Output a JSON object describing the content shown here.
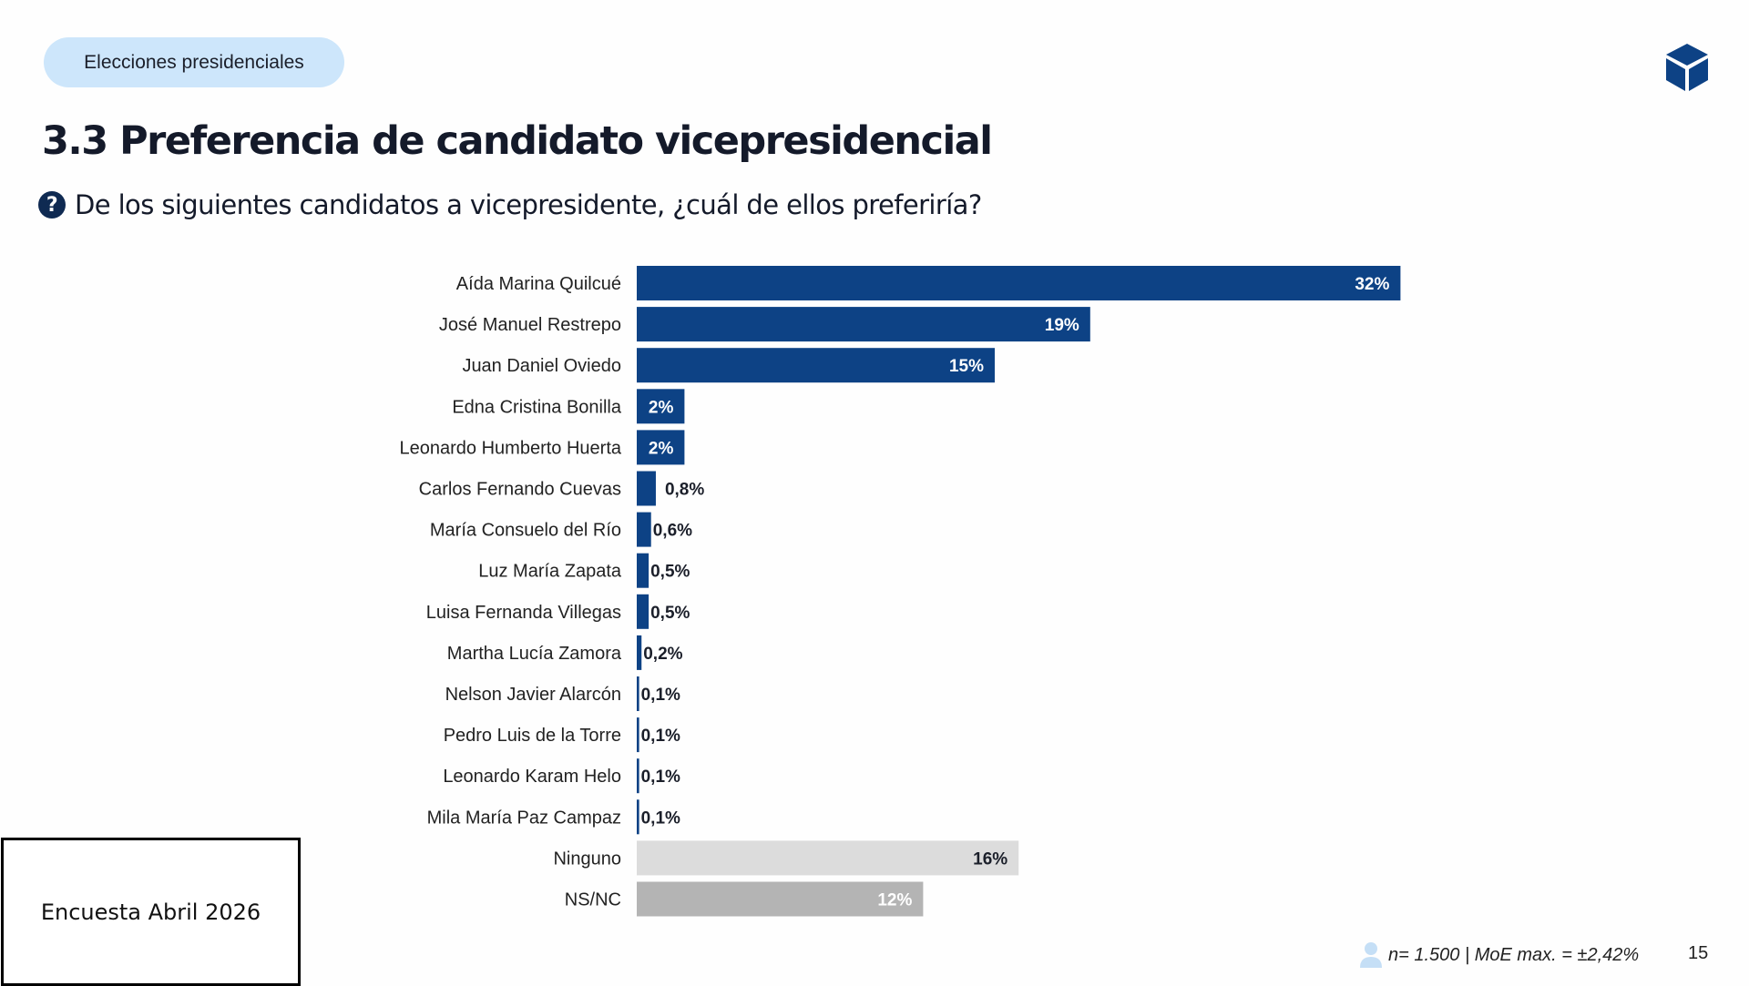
{
  "header": {
    "section_pill": "Elecciones presidenciales",
    "logo_icon": "cube-icon"
  },
  "title": "3.3 Preferencia de candidato vicepresidencial",
  "question": {
    "icon": "question-icon",
    "text": "De los siguientes candidatos a vicepresidente, ¿cuál de ellos preferiría?"
  },
  "chart_data": {
    "type": "bar",
    "orientation": "horizontal",
    "categories": [
      "Aída Marina Quilcué",
      "José Manuel Restrepo",
      "Juan Daniel Oviedo",
      "Edna Cristina Bonilla",
      "Leonardo Humberto Huerta",
      "Carlos Fernando Cuevas",
      "María Consuelo del Río",
      "Luz María Zapata",
      "Luisa Fernanda Villegas",
      "Martha Lucía Zamora",
      "Nelson Javier Alarcón",
      "Pedro Luis de la Torre",
      "Leonardo Karam Helo",
      "Mila María Paz Campaz",
      "Ninguno",
      "NS/NC"
    ],
    "values": [
      32,
      19,
      15,
      2,
      2,
      0.8,
      0.6,
      0.5,
      0.5,
      0.2,
      0.1,
      0.1,
      0.1,
      0.1,
      16,
      12
    ],
    "labels": [
      "32%",
      "19%",
      "15%",
      "2%",
      "2%",
      "0,8%",
      "0,6%",
      "0,5%",
      "0,5%",
      "0,2%",
      "0,1%",
      "0,1%",
      "0,1%",
      "0,1%",
      "16%",
      "12%"
    ],
    "colors": {
      "candidate": "#0d4285",
      "ninguno": "#dcdcdc",
      "nsnc": "#b4b4b4"
    },
    "grid": false,
    "axes_visible": false
  },
  "note_box": "Encuesta Abril 2026",
  "footer": {
    "icon": "person-icon",
    "sample": "n= 1.500 | MoE max. = ±2,42%",
    "page": "15"
  }
}
